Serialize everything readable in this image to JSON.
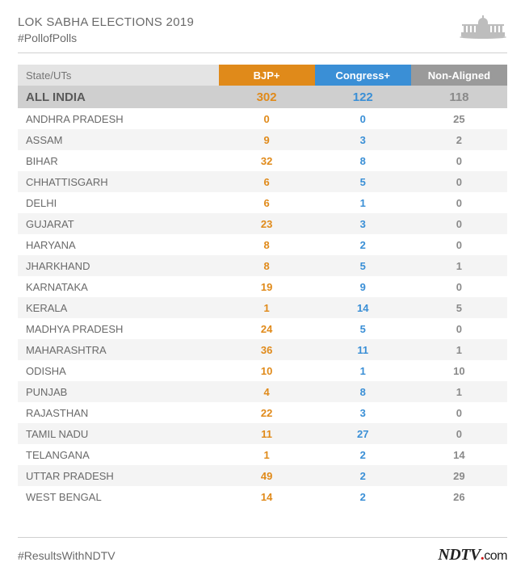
{
  "header": {
    "title": "LOK SABHA ELECTIONS 2019",
    "hashtag": "#PollofPolls"
  },
  "table": {
    "type": "table",
    "columns": {
      "state": "State/UTs",
      "bjp": "BJP+",
      "congress": "Congress+",
      "nonaligned": "Non-Aligned"
    },
    "header_bg": {
      "state": "#e4e4e4",
      "bjp": "#e08a1a",
      "congress": "#3a8fd6",
      "nonaligned": "#9a9a9a"
    },
    "value_colors": {
      "bjp": "#e08a1a",
      "congress": "#3a8fd6",
      "nonaligned": "#8a8a8a",
      "state": "#6a6a6a"
    },
    "zebra_bg": "#f4f4f4",
    "total_bg": "#cfcfcf",
    "total": {
      "state": "ALL INDIA",
      "bjp": 302,
      "congress": 122,
      "nonaligned": 118
    },
    "rows": [
      {
        "state": "ANDHRA PRADESH",
        "bjp": 0,
        "congress": 0,
        "nonaligned": 25
      },
      {
        "state": "ASSAM",
        "bjp": 9,
        "congress": 3,
        "nonaligned": 2
      },
      {
        "state": "BIHAR",
        "bjp": 32,
        "congress": 8,
        "nonaligned": 0
      },
      {
        "state": "CHHATTISGARH",
        "bjp": 6,
        "congress": 5,
        "nonaligned": 0
      },
      {
        "state": "DELHI",
        "bjp": 6,
        "congress": 1,
        "nonaligned": 0
      },
      {
        "state": "GUJARAT",
        "bjp": 23,
        "congress": 3,
        "nonaligned": 0
      },
      {
        "state": "HARYANA",
        "bjp": 8,
        "congress": 2,
        "nonaligned": 0
      },
      {
        "state": "JHARKHAND",
        "bjp": 8,
        "congress": 5,
        "nonaligned": 1
      },
      {
        "state": "KARNATAKA",
        "bjp": 19,
        "congress": 9,
        "nonaligned": 0
      },
      {
        "state": "KERALA",
        "bjp": 1,
        "congress": 14,
        "nonaligned": 5
      },
      {
        "state": "MADHYA PRADESH",
        "bjp": 24,
        "congress": 5,
        "nonaligned": 0
      },
      {
        "state": "MAHARASHTRA",
        "bjp": 36,
        "congress": 11,
        "nonaligned": 1
      },
      {
        "state": "ODISHA",
        "bjp": 10,
        "congress": 1,
        "nonaligned": 10
      },
      {
        "state": "PUNJAB",
        "bjp": 4,
        "congress": 8,
        "nonaligned": 1
      },
      {
        "state": "RAJASTHAN",
        "bjp": 22,
        "congress": 3,
        "nonaligned": 0
      },
      {
        "state": "TAMIL NADU",
        "bjp": 11,
        "congress": 27,
        "nonaligned": 0
      },
      {
        "state": "TELANGANA",
        "bjp": 1,
        "congress": 2,
        "nonaligned": 14
      },
      {
        "state": "UTTAR PRADESH",
        "bjp": 49,
        "congress": 2,
        "nonaligned": 29
      },
      {
        "state": "WEST BENGAL",
        "bjp": 14,
        "congress": 2,
        "nonaligned": 26
      }
    ]
  },
  "footer": {
    "hashtag": "#ResultsWithNDTV",
    "logo": {
      "ndtv": "NDTV",
      "dot": ".",
      "com": "com"
    }
  }
}
